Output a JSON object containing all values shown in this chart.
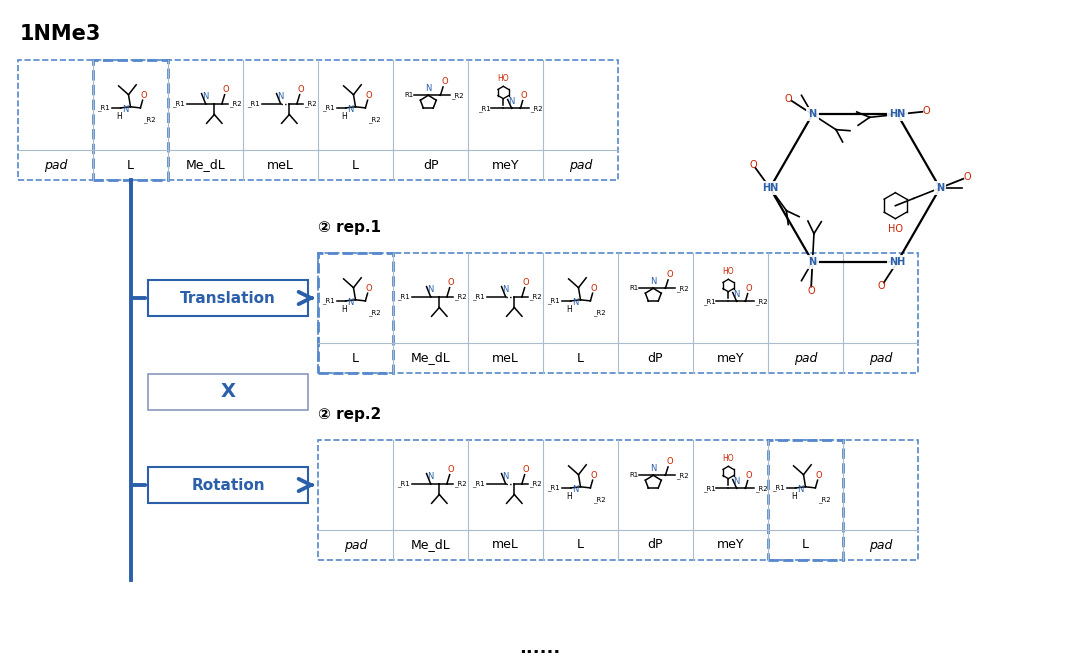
{
  "title": "1NMe3",
  "bg_color": "#ffffff",
  "blue_color": "#2b5faa",
  "dashed_blue": "#5588cc",
  "grid_color": "#aabbcc",
  "red_color": "#cc2200",
  "row1_labels": [
    "pad",
    "L",
    "Me_dL",
    "meL",
    "L",
    "dP",
    "meY",
    "pad"
  ],
  "row2_labels": [
    "L",
    "Me_dL",
    "meL",
    "L",
    "dP",
    "meY",
    "pad",
    "pad"
  ],
  "row3_labels": [
    "pad",
    "Me_dL",
    "meL",
    "L",
    "dP",
    "meY",
    "L",
    "pad"
  ],
  "rep1_title": "② rep.1",
  "rep2_title": "② rep.2",
  "translation_label": "Translation",
  "rotation_label": "Rotation",
  "x_label": "X",
  "dots": "......"
}
